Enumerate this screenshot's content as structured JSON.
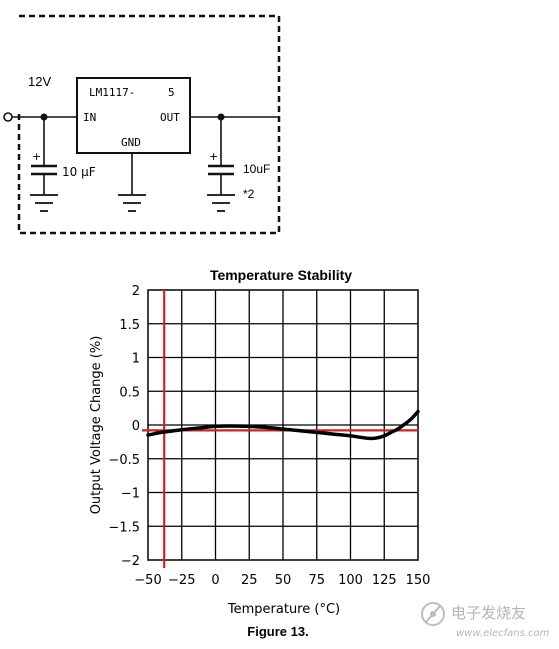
{
  "schematic": {
    "input_voltage": "12V",
    "regulator_part": "LM1117-",
    "regulator_suffix": "5",
    "pin_in": "IN",
    "pin_out": "OUT",
    "pin_gnd": "GND",
    "cap_in_value": "10 µF",
    "cap_out_value": "10uF",
    "cap_out_note": "*2",
    "polarity_mark": "+"
  },
  "chart_data": {
    "type": "line",
    "title": "Temperature Stability",
    "xlabel": "Temperature (°C)",
    "ylabel": "Output Voltage Change (%)",
    "xlim": [
      -50,
      150
    ],
    "ylim": [
      -2,
      2
    ],
    "x_ticks": [
      "−50",
      "−25",
      "0",
      "25",
      "50",
      "75",
      "100",
      "125",
      "150"
    ],
    "y_ticks": [
      "2",
      "1.5",
      "1",
      "0.5",
      "0",
      "−0.5",
      "−1",
      "−1.5",
      "−2"
    ],
    "grid": true,
    "series": [
      {
        "x": [
          -50,
          -40,
          -25,
          -10,
          0,
          10,
          25,
          40,
          50,
          60,
          75,
          90,
          100,
          110,
          115,
          120,
          125,
          130,
          135,
          140,
          145,
          150
        ],
        "y": [
          -0.15,
          -0.11,
          -0.07,
          -0.04,
          -0.02,
          -0.015,
          -0.02,
          -0.04,
          -0.06,
          -0.08,
          -0.11,
          -0.14,
          -0.16,
          -0.19,
          -0.2,
          -0.19,
          -0.16,
          -0.11,
          -0.06,
          0.01,
          0.09,
          0.2
        ]
      }
    ],
    "reference_lines": {
      "horizontal_y": -0.08,
      "vertical_x": -38
    },
    "caption": "Figure 13."
  },
  "watermark": {
    "cn": "电子发烧友",
    "en": "www.elecfans.com"
  },
  "colors": {
    "curve": "#000000",
    "reference": "#cc2222",
    "grid": "#000000"
  }
}
